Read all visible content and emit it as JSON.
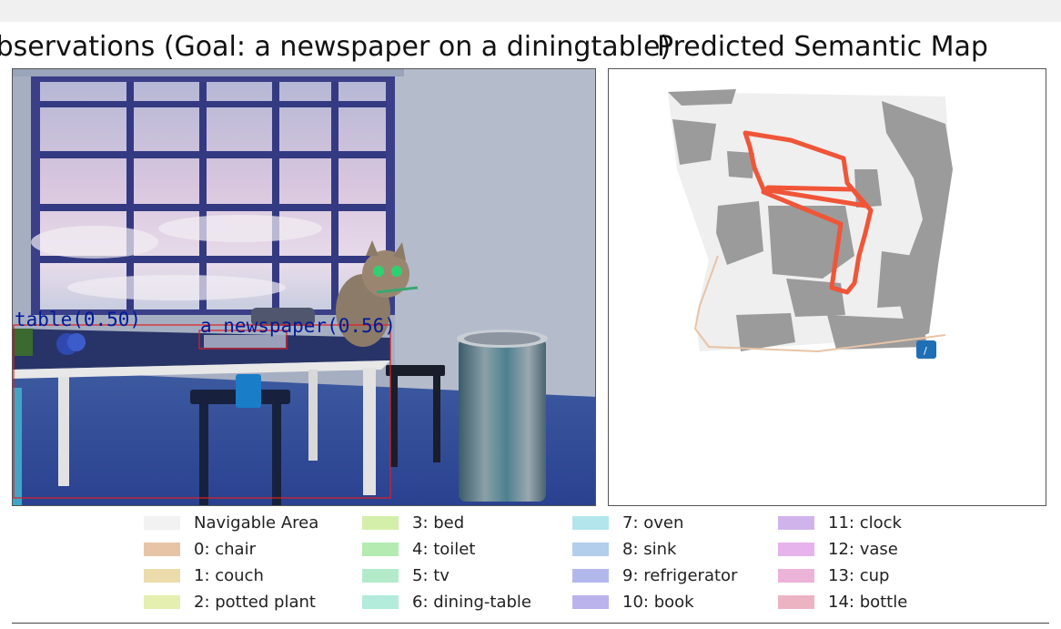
{
  "observation_title": "Observations (Goal: a newspaper on a diningtable)",
  "map_title": "Predicted Semantic Map",
  "detections": [
    {
      "label": "table(0.50)"
    },
    {
      "label": "a newspaper(0.56)"
    }
  ],
  "legend": [
    {
      "label": "Navigable Area",
      "color": "#f2f2f2"
    },
    {
      "label": "0: chair",
      "color": "#e8c4a6"
    },
    {
      "label": "1: couch",
      "color": "#ecdcab"
    },
    {
      "label": "2: potted plant",
      "color": "#e4efb0"
    },
    {
      "label": "3: bed",
      "color": "#d4efaa"
    },
    {
      "label": "4: toilet",
      "color": "#b3ebb0"
    },
    {
      "label": "5: tv",
      "color": "#b3ebca"
    },
    {
      "label": "6: dining-table",
      "color": "#b3ecdb"
    },
    {
      "label": "7: oven",
      "color": "#b3e6ec"
    },
    {
      "label": "8: sink",
      "color": "#b3cdec"
    },
    {
      "label": "9: refrigerator",
      "color": "#b3b8ec"
    },
    {
      "label": "10: book",
      "color": "#bab3ec"
    },
    {
      "label": "11: clock",
      "color": "#d1b3ec"
    },
    {
      "label": "12: vase",
      "color": "#e6b3ec"
    },
    {
      "label": "13: cup",
      "color": "#ecb3d8"
    },
    {
      "label": "14: bottle",
      "color": "#ecb3c3"
    }
  ],
  "map": {
    "trajectory_color": "#f05538",
    "agent_marker_color": "#1f6fb4"
  }
}
